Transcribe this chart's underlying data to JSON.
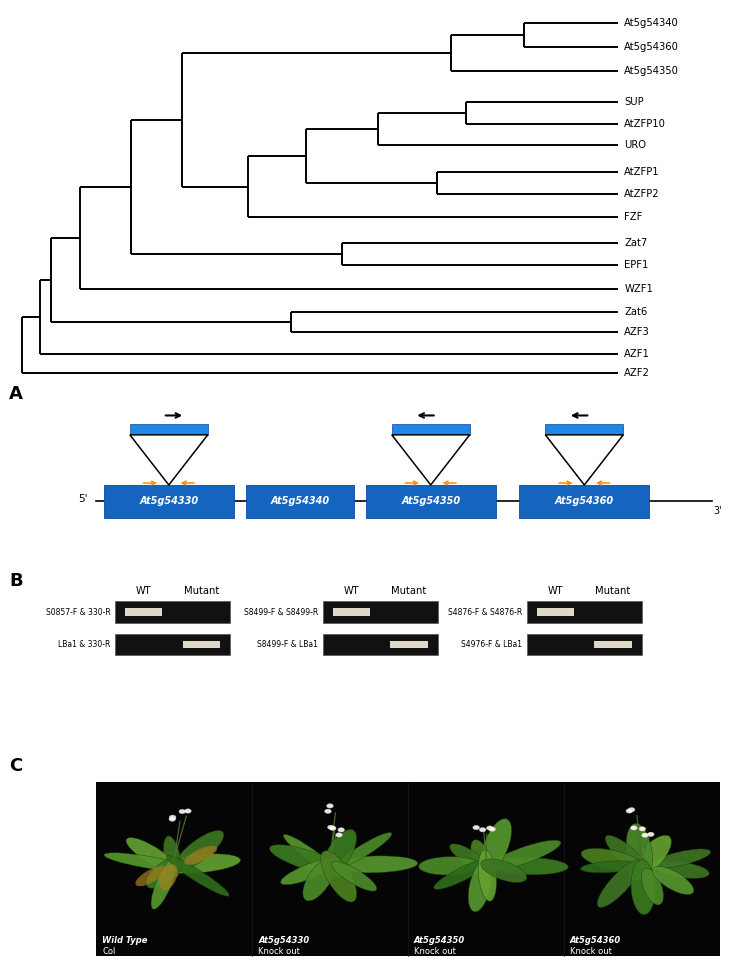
{
  "phylo_leaves": [
    "At5g54340",
    "At5g54360",
    "At5g54350",
    "SUP",
    "AtZFP10",
    "URO",
    "AtZFP1",
    "AtZFP2",
    "FZF",
    "Zat7",
    "EPF1",
    "WZF1",
    "Zat6",
    "AZF3",
    "AZF1",
    "AZF2"
  ],
  "gene_labels": [
    "At5g54330",
    "At5g54340",
    "At5g54350",
    "At5g54360"
  ],
  "gene_color": "#1565C0",
  "gene_color2": "#1E88E5",
  "line_color": "#000000",
  "arrow_color": "#FF8C00",
  "primer_sets_left": [
    "S0857-F & 330-R",
    "LBa1 & 330-R"
  ],
  "primer_sets_mid": [
    "S8499-F & S8499-R",
    "S8499-F & LBa1"
  ],
  "primer_sets_right": [
    "S4876-F & S4876-R",
    "S4976-F & LBa1"
  ],
  "wt_label": "WT",
  "mutant_label": "Mutant",
  "plant_labels": [
    "Wild Type\nCol",
    "At5g54330\nKnock out",
    "At5g54350\nKnock out",
    "At5g54360\nKnock out"
  ],
  "bg_color": "#ffffff",
  "leaf_y": {
    "At5g54340": 15.6,
    "At5g54360": 14.55,
    "At5g54350": 13.5,
    "SUP": 12.1,
    "AtZFP10": 11.15,
    "URO": 10.2,
    "AtZFP1": 9.0,
    "AtZFP2": 8.05,
    "FZF": 7.0,
    "Zat7": 5.85,
    "EPF1": 4.9,
    "WZF1": 3.85,
    "Zat6": 2.8,
    "AZF3": 1.95,
    "AZF1": 0.95,
    "AZF2": 0.1
  }
}
